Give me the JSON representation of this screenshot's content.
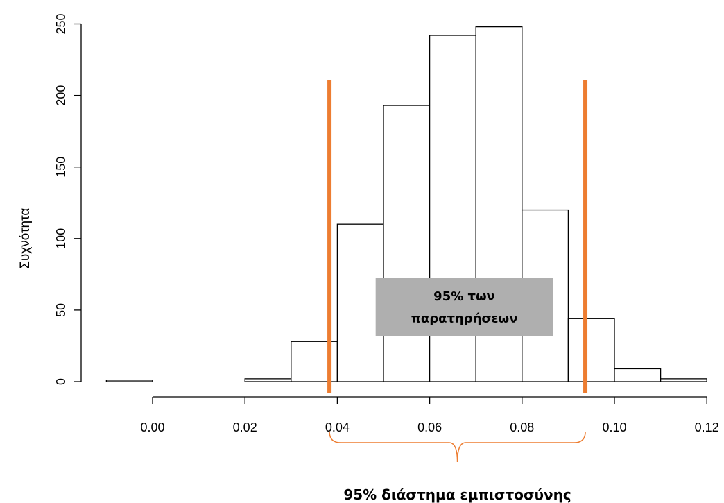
{
  "chart_data": {
    "type": "bar",
    "title": "",
    "xlabel": "",
    "ylabel": "Συχνότητα",
    "bin_edges": [
      -0.01,
      0.0,
      0.01,
      0.02,
      0.03,
      0.04,
      0.05,
      0.06,
      0.07,
      0.08,
      0.09,
      0.1,
      0.11,
      0.12
    ],
    "values": [
      1,
      0,
      0,
      2,
      28,
      110,
      193,
      242,
      248,
      120,
      44,
      9,
      2
    ],
    "xticks": [
      "0.00",
      "0.02",
      "0.04",
      "0.06",
      "0.08",
      "0.10",
      "0.12"
    ],
    "xtick_values": [
      0.0,
      0.02,
      0.04,
      0.06,
      0.08,
      0.1,
      0.12
    ],
    "yticks": [
      "0",
      "50",
      "100",
      "150",
      "200",
      "250"
    ],
    "ytick_values": [
      0,
      50,
      100,
      150,
      200,
      250
    ],
    "xlim": [
      -0.01,
      0.12
    ],
    "ylim": [
      0,
      250
    ],
    "grid": false,
    "ci_bounds": [
      0.0383,
      0.0937
    ],
    "ci_color": "#ED7D31",
    "annotation_box_color": "#AFAFAF",
    "annotation_lines": [
      "95% των",
      "παρατηρήσεων"
    ],
    "ci_label": "95% διάστημα εμπιστοσύνης"
  }
}
